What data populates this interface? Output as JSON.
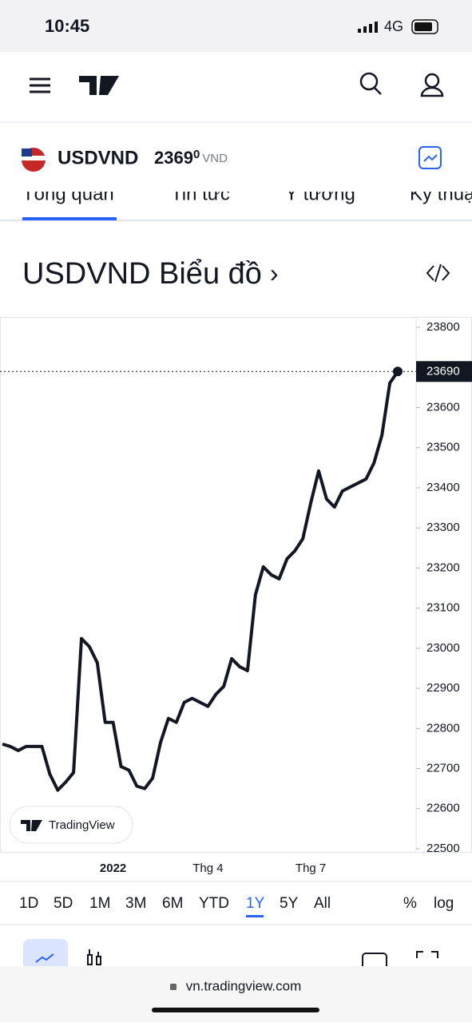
{
  "status_bar": {
    "time": "10:45",
    "network": "4G"
  },
  "symbol": {
    "name": "USDVND",
    "price_main": "2369",
    "price_sup": "0",
    "currency": "VND"
  },
  "tabs": [
    "Tổng quan",
    "Tin tức",
    "Ý tưởng",
    "Kỹ thuật"
  ],
  "section_title": "USDVND Biểu đồ",
  "section_arrow": "›",
  "watermark": "TradingView",
  "chart_data": {
    "type": "line",
    "color": "#131722",
    "categories": [
      null,
      null,
      null,
      null,
      null,
      null,
      null,
      null,
      null,
      null,
      null,
      null,
      null,
      null,
      "2022",
      null,
      null,
      null,
      null,
      null,
      null,
      null,
      null,
      null,
      null,
      null,
      "Thg 4",
      null,
      null,
      null,
      null,
      null,
      null,
      null,
      null,
      null,
      null,
      null,
      null,
      "Thg 7",
      null,
      null,
      null,
      null,
      null,
      null,
      null,
      null,
      null,
      null,
      null
    ],
    "values": [
      22761,
      22755,
      22745,
      22755,
      22755,
      22755,
      22686,
      22646,
      22666,
      22690,
      23024,
      23004,
      22964,
      22815,
      22815,
      22705,
      22696,
      22656,
      22650,
      22676,
      22765,
      22825,
      22815,
      22865,
      22875,
      22865,
      22855,
      22885,
      22905,
      22974,
      22954,
      22944,
      23133,
      23203,
      23183,
      23173,
      23223,
      23243,
      23273,
      23362,
      23442,
      23372,
      23352,
      23392,
      23402,
      23412,
      23422,
      23462,
      23531,
      23661,
      23690
    ],
    "ylim": [
      22490,
      23824
    ],
    "yticks": [
      22500,
      22600,
      22700,
      22800,
      22900,
      23000,
      23100,
      23200,
      23300,
      23400,
      23500,
      23600,
      23800
    ]
  },
  "ranges": [
    "1D",
    "5D",
    "1M",
    "3M",
    "6M",
    "YTD",
    "1Y",
    "5Y",
    "All"
  ],
  "selected_range": "1Y",
  "scale_options": [
    "%",
    "log"
  ],
  "url": "vn.tradingview.com"
}
